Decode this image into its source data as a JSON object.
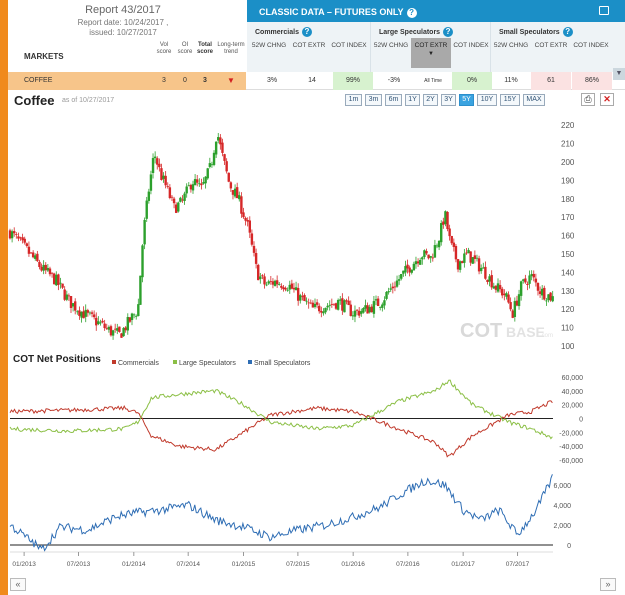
{
  "report": {
    "title": "Report 43/2017",
    "date": "Report date: 10/24/2017 ,",
    "issued": "issued: 10/27/2017"
  },
  "markets": {
    "label": "MARKETS",
    "col_vol": "Vol score",
    "col_oi": "OI score",
    "col_total": "Total score",
    "col_trend": "Long-term trend"
  },
  "classic": {
    "title": "CLASSIC DATA – FUTURES ONLY",
    "groups": [
      {
        "title": "Commercials",
        "cols": [
          "52W CHNG",
          "COT EXTR",
          "COT INDEX"
        ]
      },
      {
        "title": "Large Speculators",
        "cols": [
          "52W CHNG",
          "COT EXTR",
          "COT INDEX"
        ]
      },
      {
        "title": "Small Speculators",
        "cols": [
          "52W CHNG",
          "COT EXTR",
          "COT INDEX"
        ]
      }
    ]
  },
  "row": {
    "name": "COFFEE",
    "vol": "3",
    "oi": "0",
    "total": "3",
    "trend": "down",
    "vals": [
      "3%",
      "14",
      "99%",
      "-3%",
      "All Time",
      "0%",
      "11%",
      "61",
      "86%"
    ]
  },
  "chart_header": {
    "title": "Coffee",
    "asof": "as of 10/27/2017",
    "ranges": [
      "1m",
      "3m",
      "6m",
      "1Y",
      "2Y",
      "3Y",
      "5Y",
      "10Y",
      "15Y",
      "MAX"
    ],
    "active_range": "5Y"
  },
  "watermark": {
    "main": "COT",
    "sub": "BASE",
    "tld": ".com"
  },
  "colors": {
    "up": "#2ca02c",
    "down": "#d62728",
    "commercials": "#c0392b",
    "large": "#8bbf45",
    "small": "#2e6db4",
    "accent": "#f08a1c",
    "brand": "#1b8fc7"
  },
  "chart_data": [
    {
      "type": "candlestick",
      "title": "Coffee",
      "ylim": [
        100,
        225
      ],
      "yticks": [
        100,
        110,
        120,
        130,
        140,
        150,
        160,
        170,
        180,
        190,
        200,
        210,
        220
      ],
      "xlim": [
        "2012-11-15",
        "2017-10-27"
      ],
      "close_anchors": [
        [
          "2012-11-15",
          162
        ],
        [
          "2013-01-10",
          152
        ],
        [
          "2013-03-01",
          142
        ],
        [
          "2013-04-15",
          136
        ],
        [
          "2013-06-01",
          124
        ],
        [
          "2013-07-15",
          118
        ],
        [
          "2013-09-01",
          113
        ],
        [
          "2013-10-15",
          108
        ],
        [
          "2013-11-15",
          106
        ],
        [
          "2013-12-15",
          113
        ],
        [
          "2014-01-15",
          120
        ],
        [
          "2014-02-01",
          160
        ],
        [
          "2014-02-20",
          185
        ],
        [
          "2014-03-10",
          205
        ],
        [
          "2014-04-01",
          193
        ],
        [
          "2014-04-20",
          186
        ],
        [
          "2014-05-15",
          175
        ],
        [
          "2014-06-10",
          178
        ],
        [
          "2014-07-15",
          190
        ],
        [
          "2014-08-15",
          185
        ],
        [
          "2014-09-15",
          198
        ],
        [
          "2014-10-05",
          217
        ],
        [
          "2014-10-20",
          205
        ],
        [
          "2014-11-15",
          188
        ],
        [
          "2014-12-15",
          180
        ],
        [
          "2015-01-15",
          165
        ],
        [
          "2015-02-15",
          140
        ],
        [
          "2015-03-15",
          133
        ],
        [
          "2015-04-15",
          135
        ],
        [
          "2015-06-01",
          133
        ],
        [
          "2015-07-15",
          125
        ],
        [
          "2015-08-20",
          120
        ],
        [
          "2015-10-01",
          122
        ],
        [
          "2015-11-15",
          124
        ],
        [
          "2016-01-01",
          118
        ],
        [
          "2016-02-15",
          120
        ],
        [
          "2016-04-01",
          124
        ],
        [
          "2016-05-15",
          133
        ],
        [
          "2016-07-01",
          142
        ],
        [
          "2016-08-15",
          150
        ],
        [
          "2016-09-15",
          148
        ],
        [
          "2016-10-15",
          160
        ],
        [
          "2016-11-01",
          172
        ],
        [
          "2016-11-20",
          155
        ],
        [
          "2016-12-15",
          145
        ],
        [
          "2017-01-15",
          150
        ],
        [
          "2017-02-15",
          145
        ],
        [
          "2017-03-15",
          140
        ],
        [
          "2017-04-20",
          132
        ],
        [
          "2017-05-20",
          128
        ],
        [
          "2017-06-15",
          118
        ],
        [
          "2017-07-15",
          133
        ],
        [
          "2017-08-15",
          138
        ],
        [
          "2017-09-15",
          130
        ],
        [
          "2017-10-27",
          126
        ]
      ]
    },
    {
      "type": "line",
      "title": "COT Net Positions",
      "series": [
        {
          "name": "Commercials",
          "color": "#c0392b",
          "anchors": [
            [
              "2012-11-15",
              10000
            ],
            [
              "2013-06-01",
              12000
            ],
            [
              "2013-12-01",
              15000
            ],
            [
              "2014-01-15",
              8000
            ],
            [
              "2014-03-01",
              -25000
            ],
            [
              "2014-06-01",
              -40000
            ],
            [
              "2014-10-01",
              -45000
            ],
            [
              "2015-01-01",
              -20000
            ],
            [
              "2015-04-01",
              5000
            ],
            [
              "2015-09-01",
              15000
            ],
            [
              "2016-01-01",
              10000
            ],
            [
              "2016-06-01",
              -15000
            ],
            [
              "2016-10-01",
              -35000
            ],
            [
              "2016-11-15",
              -55000
            ],
            [
              "2017-02-01",
              -25000
            ],
            [
              "2017-06-01",
              5000
            ],
            [
              "2017-08-15",
              10000
            ],
            [
              "2017-10-27",
              25000
            ]
          ]
        },
        {
          "name": "Large Speculators",
          "color": "#8bbf45",
          "anchors": [
            [
              "2012-11-15",
              -15000
            ],
            [
              "2013-06-01",
              -18000
            ],
            [
              "2013-12-01",
              -15000
            ],
            [
              "2014-01-15",
              -5000
            ],
            [
              "2014-03-01",
              30000
            ],
            [
              "2014-06-01",
              35000
            ],
            [
              "2014-10-01",
              40000
            ],
            [
              "2015-01-01",
              20000
            ],
            [
              "2015-04-01",
              -5000
            ],
            [
              "2015-09-01",
              -15000
            ],
            [
              "2016-01-01",
              -10000
            ],
            [
              "2016-06-01",
              25000
            ],
            [
              "2016-10-01",
              40000
            ],
            [
              "2016-11-15",
              55000
            ],
            [
              "2017-02-01",
              20000
            ],
            [
              "2017-06-01",
              -5000
            ],
            [
              "2017-08-15",
              -15000
            ],
            [
              "2017-10-27",
              -28000
            ]
          ]
        }
      ],
      "legend": [
        "Commercials",
        "Large Speculators",
        "Small Speculators"
      ],
      "ylim": [
        -70000,
        70000
      ],
      "yticks": [
        -60000,
        -40000,
        -20000,
        0,
        20000,
        40000,
        60000
      ]
    },
    {
      "type": "line",
      "series": [
        {
          "name": "Small Speculators",
          "color": "#2e6db4",
          "anchors": [
            [
              "2012-11-15",
              2000
            ],
            [
              "2013-01-20",
              500
            ],
            [
              "2013-03-01",
              -500
            ],
            [
              "2013-05-01",
              1800
            ],
            [
              "2013-08-01",
              1500
            ],
            [
              "2013-11-01",
              2800
            ],
            [
              "2014-01-01",
              3200
            ],
            [
              "2014-04-01",
              3500
            ],
            [
              "2014-07-01",
              4000
            ],
            [
              "2014-10-01",
              2500
            ],
            [
              "2015-01-01",
              1800
            ],
            [
              "2015-04-01",
              800
            ],
            [
              "2015-07-01",
              1500
            ],
            [
              "2015-10-01",
              2000
            ],
            [
              "2016-01-01",
              2800
            ],
            [
              "2016-04-01",
              3800
            ],
            [
              "2016-06-01",
              5000
            ],
            [
              "2016-09-01",
              6500
            ],
            [
              "2016-11-01",
              6000
            ],
            [
              "2017-01-01",
              3500
            ],
            [
              "2017-03-01",
              2500
            ],
            [
              "2017-05-01",
              3500
            ],
            [
              "2017-07-01",
              1000
            ],
            [
              "2017-09-01",
              3500
            ],
            [
              "2017-10-27",
              6800
            ]
          ]
        }
      ],
      "ylim": [
        -500,
        7500
      ],
      "yticks": [
        0,
        2000,
        4000,
        6000
      ]
    }
  ],
  "x_ticks": [
    "01/2013",
    "07/2013",
    "01/2014",
    "07/2014",
    "01/2015",
    "07/2015",
    "01/2016",
    "07/2016",
    "01/2017",
    "07/2017"
  ],
  "y_tick_labels": {
    "cot": [
      "-60,000",
      "-40,000",
      "-20,000",
      "0",
      "20,000",
      "40,000",
      "60,000"
    ],
    "small": [
      "0",
      "2,000",
      "4,000",
      "6,000"
    ]
  },
  "nav": {
    "prev": "«",
    "next": "»"
  }
}
